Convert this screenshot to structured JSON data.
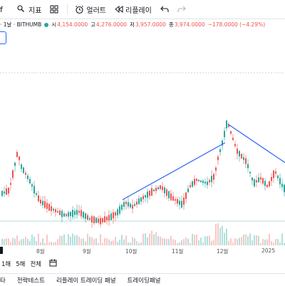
{
  "toolbar": {
    "indicators_label": "지표",
    "alert_label": "얼러트",
    "replay_label": "리플레이"
  },
  "legend": {
    "symbol": "· 1날 · BITHUMB",
    "open_label": "시",
    "open_value": "4,154.0000",
    "high_label": "고",
    "high_value": "4,276.0000",
    "low_label": "저",
    "low_value": "3,957.0000",
    "close_label": "종",
    "close_value": "3,974.0000",
    "change_value": "−178.0000 (−4.29%)",
    "up_color": "#26a69a",
    "down_color": "#ef5350"
  },
  "time_axis": {
    "labels": [
      "8월",
      "9월",
      "10월",
      "11월",
      "12월",
      "2025"
    ]
  },
  "range_buttons": [
    "1해",
    "5해",
    "전체"
  ],
  "calendar_icon": "calendar-icon",
  "bottom_tabs": [
    "타",
    "전략테스트",
    "리플레이 트레이딩 패널",
    "트레이딩패널"
  ],
  "trendline_color": "#2962ff"
}
